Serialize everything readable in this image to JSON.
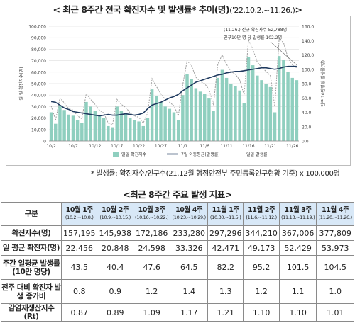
{
  "header": {
    "title": "< 최근 8주간 전국 확진자수 및 발생률* 추이(명)",
    "range": "('22.10.2.~11.26.)",
    "close": ">"
  },
  "footnote": "* 발생률: 확진자수/인구수(21.12월 행정안전부 주민등록인구현황 기준) x 100,000명",
  "table_title": "<최근 8주간 주요 발생 지표>",
  "table": {
    "corner": "구분",
    "columns": [
      {
        "label": "10월 1주",
        "range": "(10.2.~10.8.)"
      },
      {
        "label": "10월 2주",
        "range": "(10.9.~10.15.)"
      },
      {
        "label": "10월 3주",
        "range": "(10.16.~10.22.)"
      },
      {
        "label": "10월 4주",
        "range": "(10.23.~10.29.)"
      },
      {
        "label": "11월 1주",
        "range": "(10.30.~11.5.)"
      },
      {
        "label": "11월 2주",
        "range": "(11.6.~11.12.)"
      },
      {
        "label": "11월 3주",
        "range": "(11.13.~11.19.)"
      },
      {
        "label": "11월 4주",
        "range": "(11.20.~11.26.)"
      }
    ],
    "rows": [
      {
        "label": "확진자수(명)",
        "values": [
          "157,195",
          "145,938",
          "172,186",
          "233,280",
          "297,296",
          "344,210",
          "367,006",
          "377,809"
        ]
      },
      {
        "label": "일 평균 확진자(명)",
        "values": [
          "22,456",
          "20,848",
          "24,598",
          "33,326",
          "42,471",
          "49,173",
          "52,429",
          "53,973"
        ]
      },
      {
        "label": "주간 일평균 발생률(10만 명당)",
        "values": [
          "43.5",
          "40.4",
          "47.6",
          "64.5",
          "82.2",
          "95.2",
          "101.5",
          "104.5"
        ]
      },
      {
        "label": "전주 대비 확진자 발생 증가비",
        "values": [
          "0.8",
          "0.9",
          "1.2",
          "1.4",
          "1.3",
          "1.2",
          "1.1",
          "1.0"
        ]
      },
      {
        "label": "감염재생산지수(Rt)",
        "values": [
          "0.87",
          "0.89",
          "1.09",
          "1.17",
          "1.21",
          "1.10",
          "1.10",
          "1.01"
        ]
      }
    ]
  },
  "chart_data": {
    "type": "bar",
    "x_labels": [
      "10/2",
      "10/7",
      "10/12",
      "10/17",
      "10/22",
      "10/27",
      "11/1",
      "11/6",
      "11/11",
      "11/16",
      "11/21",
      "11/26"
    ],
    "y_left_ticks": [
      "0",
      "10,000",
      "20,000",
      "30,000",
      "40,000",
      "50,000",
      "60,000",
      "70,000",
      "80,000",
      "90,000",
      "100,000"
    ],
    "y_right_ticks": [
      "0.0",
      "20.0",
      "40.0",
      "60.0",
      "80.0",
      "100.0",
      "120.0",
      "140.0",
      "160.0"
    ],
    "ylim_left": [
      0,
      100000
    ],
    "ylim_right": [
      0,
      160
    ],
    "ylabel_left": "일 일 확진자수(명)",
    "ylabel_right": "인구 10만명당 발생률(명)",
    "annotation": [
      "(11.26.) 신규 확진자수 52,788명",
      "인구10만 명 당 발생률 102.2명"
    ],
    "series": [
      {
        "name": "일일 확진자수",
        "kind": "bar",
        "color": "#8fcfbf",
        "values": [
          25000,
          15000,
          31000,
          27000,
          23000,
          22000,
          18000,
          16000,
          34000,
          30000,
          26000,
          22000,
          20000,
          13000,
          12000,
          30000,
          26000,
          24000,
          20000,
          18000,
          17000,
          13000,
          20000,
          45000,
          39000,
          34000,
          30000,
          28000,
          25000,
          18000,
          40000,
          58000,
          54000,
          46000,
          43000,
          41000,
          37000,
          26000,
          55000,
          62000,
          55000,
          50000,
          48000,
          44000,
          33000,
          73000,
          66000,
          57000,
          53000,
          50000,
          47000,
          25000,
          74000,
          71000,
          60000,
          55000,
          53000
        ]
      },
      {
        "name": "7일 이동평균(발생률)",
        "kind": "line",
        "color": "#1f3a5f",
        "values": [
          55,
          54,
          50,
          46,
          44,
          41,
          40,
          39,
          38,
          37,
          36,
          35,
          36,
          37,
          36,
          36,
          37,
          38,
          37,
          36,
          37,
          39,
          45,
          50,
          52,
          54,
          57,
          60,
          62,
          65,
          70,
          74,
          78,
          82,
          84,
          86,
          88,
          90,
          92,
          93,
          95,
          96,
          97,
          97,
          98,
          99,
          100,
          101,
          102,
          102,
          101,
          100,
          101,
          103,
          104,
          104,
          104
        ]
      },
      {
        "name": "일일 발생률",
        "kind": "line",
        "color": "#9e9e9e",
        "dashed": true,
        "values": [
          49,
          29,
          60,
          53,
          45,
          43,
          35,
          31,
          66,
          58,
          51,
          43,
          39,
          25,
          23,
          58,
          51,
          47,
          39,
          35,
          33,
          25,
          39,
          87,
          76,
          66,
          58,
          54,
          49,
          35,
          78,
          112,
          105,
          89,
          83,
          80,
          72,
          50,
          107,
          120,
          107,
          97,
          93,
          85,
          64,
          141,
          128,
          110,
          103,
          97,
          91,
          48,
          143,
          137,
          116,
          106,
          102
        ]
      }
    ]
  }
}
